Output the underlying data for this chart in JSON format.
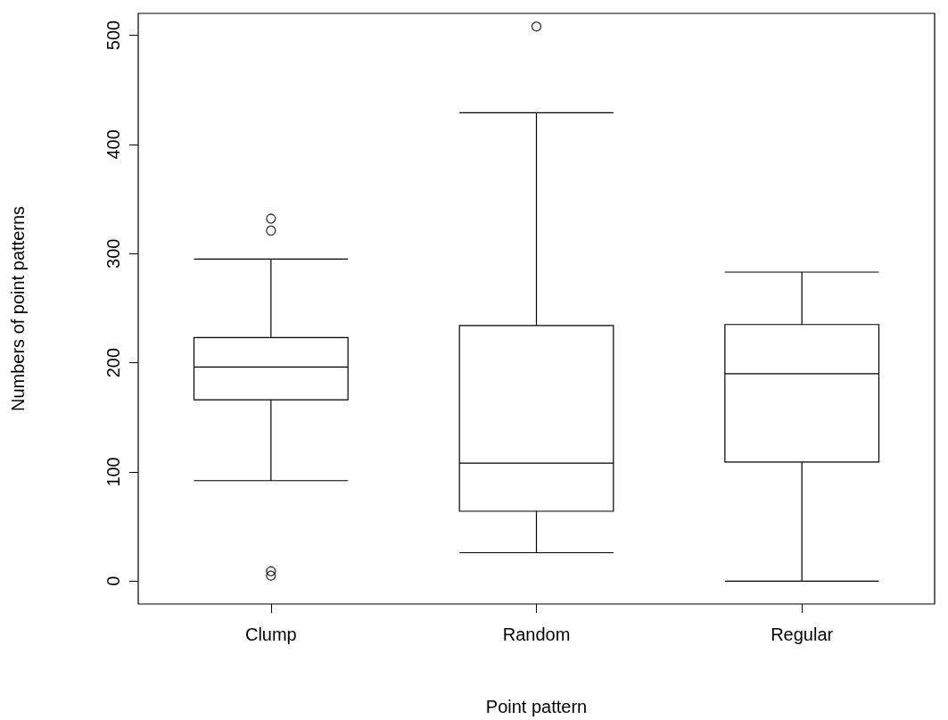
{
  "chart_data": {
    "type": "box",
    "xlabel": "Point pattern",
    "ylabel": "Numbers of point patterns",
    "categories": [
      "Clump",
      "Random",
      "Regular"
    ],
    "boxes": [
      {
        "low": 92,
        "q1": 166,
        "median": 196,
        "q3": 223,
        "high": 295,
        "outliers": [
          5,
          9,
          321,
          332
        ]
      },
      {
        "low": 26,
        "q1": 64,
        "median": 108,
        "q3": 234,
        "high": 429,
        "outliers": [
          508
        ]
      },
      {
        "low": 0,
        "q1": 109,
        "median": 190,
        "q3": 235,
        "high": 283
      }
    ],
    "color": "#000000",
    "ylim": [
      -21,
      520
    ],
    "yticks": [
      0,
      100,
      200,
      300,
      400,
      500
    ],
    "grid": false
  }
}
